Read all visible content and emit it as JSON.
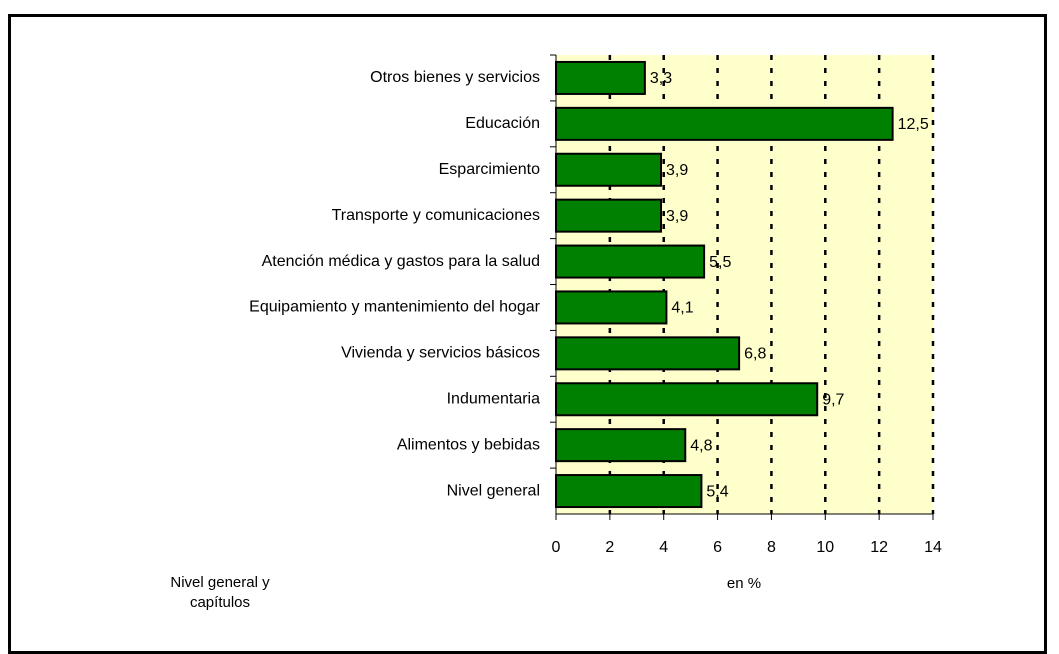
{
  "chart_data": {
    "type": "bar",
    "orientation": "horizontal",
    "categories": [
      "Otros bienes y servicios",
      "Educación",
      "Esparcimiento",
      "Transporte y comunicaciones",
      "Atención médica y gastos para la salud",
      "Equipamiento y mantenimiento del hogar",
      "Vivienda y servicios básicos",
      "Indumentaria",
      "Alimentos y bebidas",
      "Nivel general"
    ],
    "values": [
      3.3,
      12.5,
      3.9,
      3.9,
      5.5,
      4.1,
      6.8,
      9.7,
      4.8,
      5.4
    ],
    "value_labels": [
      "3,3",
      "12,5",
      "3,9",
      "3,9",
      "5,5",
      "4,1",
      "6,8",
      "9,7",
      "4,8",
      "5,4"
    ],
    "color": "#008000",
    "xlim": [
      0,
      14
    ],
    "xticks": [
      0,
      2,
      4,
      6,
      8,
      10,
      12,
      14
    ],
    "grid": true,
    "xlabel": "en %",
    "ylabel": "Nivel general y capítulos"
  }
}
